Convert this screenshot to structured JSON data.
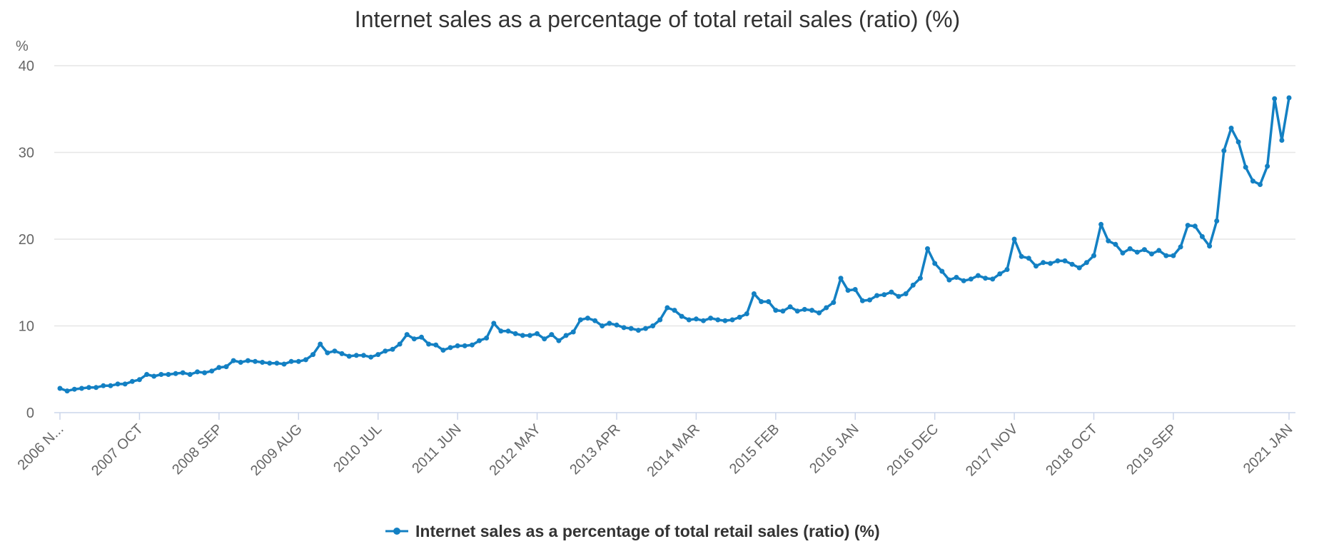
{
  "chart_data": {
    "type": "line",
    "title": "Internet sales as a percentage of total retail sales (ratio) (%)",
    "ylabel": "%",
    "xlabel": "",
    "ylim": [
      0,
      40
    ],
    "yticks": [
      "0",
      "10",
      "20",
      "30",
      "40"
    ],
    "xtick_labels": [
      "2006 N...",
      "2007 OCT",
      "2008 SEP",
      "2009 AUG",
      "2010 JUL",
      "2011 JUN",
      "2012 MAY",
      "2013 APR",
      "2014 MAR",
      "2015 FEB",
      "2016 JAN",
      "2016 DEC",
      "2017 NOV",
      "2018 OCT",
      "2019 SEP",
      "2021 JAN"
    ],
    "xtick_index": [
      0,
      11,
      22,
      33,
      44,
      55,
      66,
      77,
      88,
      99,
      110,
      121,
      132,
      143,
      154,
      170
    ],
    "x_start": "2006 NOV",
    "x_end": "2021 JAN",
    "grid": true,
    "legend_position": "bottom",
    "color": "#1380c3",
    "series": [
      {
        "name": "Internet sales as a percentage of total retail sales (ratio) (%)",
        "values": [
          2.8,
          2.5,
          2.7,
          2.8,
          2.9,
          2.9,
          3.1,
          3.1,
          3.3,
          3.3,
          3.6,
          3.8,
          4.4,
          4.2,
          4.4,
          4.4,
          4.5,
          4.6,
          4.4,
          4.7,
          4.6,
          4.8,
          5.2,
          5.3,
          6.0,
          5.8,
          6.0,
          5.9,
          5.8,
          5.7,
          5.7,
          5.6,
          5.9,
          5.9,
          6.1,
          6.7,
          7.9,
          6.9,
          7.1,
          6.8,
          6.5,
          6.6,
          6.6,
          6.4,
          6.7,
          7.1,
          7.3,
          7.9,
          9.0,
          8.5,
          8.7,
          7.9,
          7.8,
          7.2,
          7.5,
          7.7,
          7.7,
          7.8,
          8.3,
          8.6,
          10.3,
          9.4,
          9.4,
          9.1,
          8.9,
          8.9,
          9.1,
          8.5,
          9.0,
          8.3,
          8.9,
          9.3,
          10.7,
          10.9,
          10.6,
          10.0,
          10.3,
          10.1,
          9.8,
          9.7,
          9.5,
          9.7,
          10.0,
          10.7,
          12.1,
          11.8,
          11.1,
          10.7,
          10.8,
          10.6,
          10.9,
          10.7,
          10.6,
          10.7,
          11.0,
          11.4,
          13.7,
          12.8,
          12.8,
          11.8,
          11.7,
          12.2,
          11.7,
          11.9,
          11.8,
          11.5,
          12.1,
          12.7,
          15.5,
          14.1,
          14.2,
          12.9,
          13.0,
          13.5,
          13.6,
          13.9,
          13.4,
          13.7,
          14.7,
          15.5,
          18.9,
          17.2,
          16.3,
          15.3,
          15.6,
          15.2,
          15.4,
          15.8,
          15.5,
          15.4,
          16.0,
          16.5,
          20.0,
          18.0,
          17.8,
          16.9,
          17.3,
          17.2,
          17.5,
          17.5,
          17.1,
          16.7,
          17.3,
          18.1,
          21.7,
          19.8,
          19.4,
          18.4,
          18.9,
          18.5,
          18.8,
          18.3,
          18.7,
          18.1,
          18.1,
          19.1,
          21.6,
          21.5,
          20.3,
          19.2,
          22.1,
          30.2,
          32.8,
          31.2,
          28.3,
          26.7,
          26.3,
          28.4,
          36.2,
          31.4,
          36.3
        ]
      }
    ]
  }
}
